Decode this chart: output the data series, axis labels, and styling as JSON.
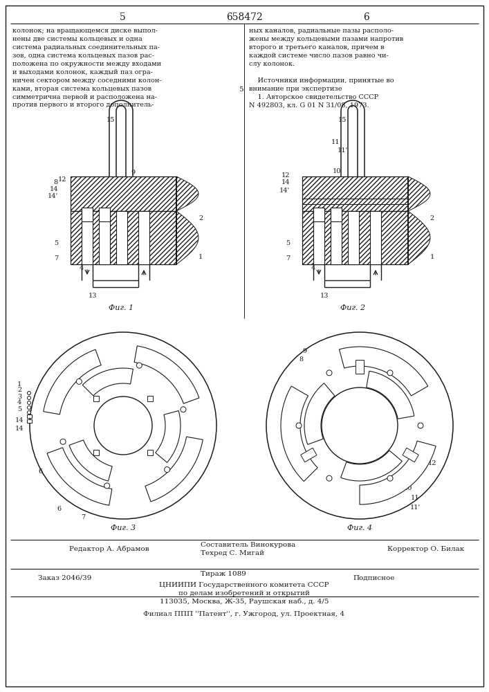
{
  "page_number_left": "5",
  "patent_number": "658472",
  "page_number_right": "6",
  "text_left": "колонок; на вращающемся диске выпол-\nнены две системы кольцевых и одна\nсистема радиальных соединительных па-\nзов, одна система кольцевых пазов рас-\nположена по окружности между входами\nи выходами колонок, каждый паз огра-\nничен сектором между соседними колон-\nками, вторая система кольцевых пазов\nсимметрична первой и расположена на-\nпротив первого и второго дополнитель-",
  "text_right": "ных каналов, радиальные пазы располо-\nжены между кольцевыми пазами напротив\nвторого и третьего каналов, причем в\nкаждой системе число пазов равно чи-\nслу колонок.\n\n    Источники информации, принятые во\nвнимание при экспертизе\n    1. Авторское свидетельство СССР\nN 492803, кл. G 01 N 31/08, 1973.",
  "line_number_5": "5",
  "fig1_label": "Фиг. 1",
  "fig2_label": "Фиг. 2",
  "fig3_label": "Фиг. 3",
  "fig4_label": "Фиг. 4",
  "footer_editor": "Редактор А. Абрамов",
  "footer_compiler": "Составитель Винокурова",
  "footer_tech": "Техред С. Мигай",
  "footer_corrector": "Корректор О. Билак",
  "footer_order": "Заказ 2046/39",
  "footer_edition": "Тираж 1089",
  "footer_signed": "Подписное",
  "footer_org1": "ЦНИИПИ Государственного комитета СССР",
  "footer_org2": "по делам изобретений и открытий",
  "footer_addr": "113035, Москва, Ж-35, Раушская наб., д. 4/5",
  "footer_branch": "Филиал ППП ''Патент'', г. Ужгород, ул. Проектная, 4",
  "bg_color": "#ffffff",
  "line_color": "#1a1a1a"
}
